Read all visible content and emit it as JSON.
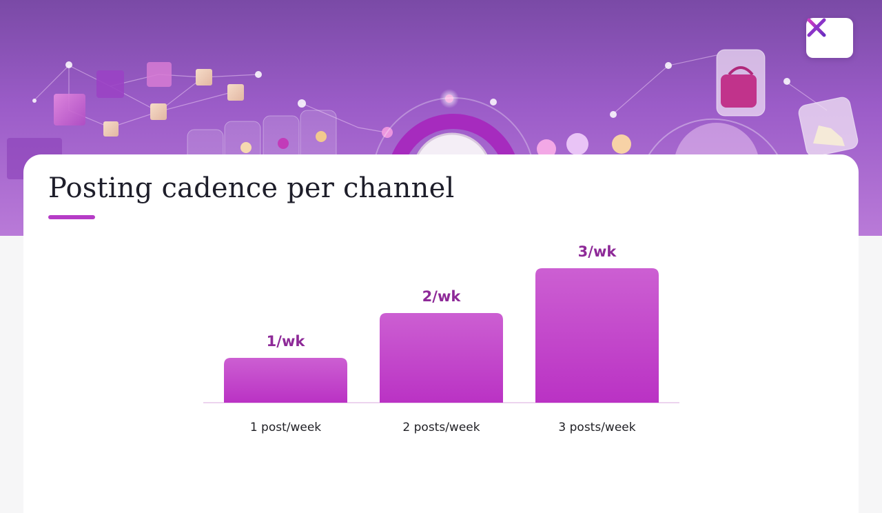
{
  "page": {
    "title": "Posting cadence per channel"
  },
  "colors": {
    "accent": "#b53cc6",
    "bar_top": "#cc5fd2",
    "bar_bottom": "#ba32c4",
    "value_label": "#8e2a98",
    "axis": "#ecd4ee"
  },
  "icons": {
    "logo": "x-logo-icon",
    "hero_decor": [
      "cube-icon",
      "clock-icon",
      "handbag-icon",
      "sneaker-icon"
    ]
  },
  "chart_data": {
    "type": "bar",
    "categories": [
      "1 post/week",
      "2 posts/week",
      "3 posts/week"
    ],
    "values": [
      1,
      2,
      3
    ],
    "value_labels": [
      "1/wk",
      "2/wk",
      "3/wk"
    ],
    "title": "Posting cadence per channel",
    "xlabel": "",
    "ylabel": "",
    "ylim": [
      0,
      3
    ],
    "grid": false,
    "legend": "none"
  }
}
